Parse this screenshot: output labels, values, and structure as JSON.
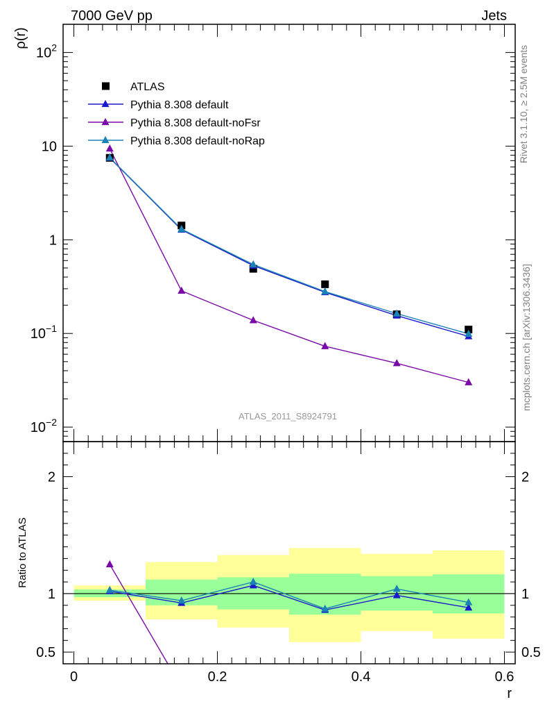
{
  "header": {
    "left": "7000 GeV pp",
    "right": "Jets"
  },
  "side_labels": {
    "rivet": "Rivet 3.1.10, ≥ 2.5M events",
    "mcplots": "mcplots.cern.ch [arXiv:1306.3436]"
  },
  "analysis_label": "ATLAS_2011_S8924791",
  "chart_data": [
    {
      "type": "line",
      "panel": "main",
      "ylabel": "ρ(r)",
      "yscale": "log",
      "ylim": [
        0.007,
        200
      ],
      "xlim": [
        -0.015,
        0.615
      ],
      "y_tick_labels": [
        {
          "value": 0.01,
          "base": "10",
          "exp": "−2"
        },
        {
          "value": 0.1,
          "base": "10",
          "exp": "−1"
        },
        {
          "value": 1,
          "base": "1",
          "exp": ""
        },
        {
          "value": 10,
          "base": "10",
          "exp": ""
        },
        {
          "value": 100,
          "base": "10",
          "exp": "2"
        }
      ],
      "x": [
        0.05,
        0.15,
        0.25,
        0.35,
        0.45,
        0.55
      ],
      "series": [
        {
          "name": "ATLAS",
          "marker": "square",
          "color": "#000000",
          "values": [
            7.5,
            1.42,
            0.49,
            0.335,
            0.16,
            0.11
          ]
        },
        {
          "name": "Pythia 8.308 default",
          "marker": "triangle",
          "color": "#1a1acc",
          "values": [
            7.5,
            1.28,
            0.53,
            0.275,
            0.155,
            0.093
          ]
        },
        {
          "name": "Pythia 8.308 default-noFsr",
          "marker": "triangle",
          "color": "#7a0aa8",
          "values": [
            9.4,
            0.285,
            0.138,
            0.073,
            0.048,
            0.03
          ]
        },
        {
          "name": "Pythia 8.308 default-noRap",
          "marker": "triangle",
          "color": "#1a82b4",
          "values": [
            7.55,
            1.3,
            0.545,
            0.28,
            0.163,
            0.099
          ]
        }
      ],
      "legend_position": "top-left"
    },
    {
      "type": "line",
      "panel": "ratio",
      "ylabel": "Ratio to ATLAS",
      "xlabel": "r",
      "ylim": [
        0.4,
        2.3
      ],
      "xlim": [
        -0.015,
        0.615
      ],
      "y_tick_labels": [
        "0.5",
        "1",
        "2"
      ],
      "y_tick_values": [
        0.5,
        1,
        2
      ],
      "x_tick_labels": [
        "0",
        "0.2",
        "0.4",
        "0.6"
      ],
      "x_tick_values": [
        0,
        0.2,
        0.4,
        0.6
      ],
      "x": [
        0.05,
        0.15,
        0.25,
        0.35,
        0.45,
        0.55
      ],
      "bin_edges": [
        0,
        0.1,
        0.2,
        0.3,
        0.4,
        0.5,
        0.6
      ],
      "band_inner": {
        "color": "#99ff99",
        "low": [
          0.97,
          0.9,
          0.865,
          0.82,
          0.855,
          0.83
        ],
        "high": [
          1.035,
          1.12,
          1.14,
          1.17,
          1.15,
          1.165
        ]
      },
      "band_outer": {
        "color": "#ffff99",
        "low": [
          0.94,
          0.78,
          0.71,
          0.585,
          0.68,
          0.615
        ],
        "high": [
          1.07,
          1.27,
          1.33,
          1.39,
          1.34,
          1.37
        ]
      },
      "series": [
        {
          "name": "Pythia 8.308 default",
          "color": "#1a1acc",
          "values": [
            1.02,
            0.92,
            1.07,
            0.86,
            0.985,
            0.88
          ]
        },
        {
          "name": "Pythia 8.308 default-noFsr",
          "color": "#7a0aa8",
          "values": [
            1.25,
            0.2,
            null,
            null,
            null,
            null
          ]
        },
        {
          "name": "Pythia 8.308 default-noRap",
          "color": "#1a82b4",
          "values": [
            1.03,
            0.94,
            1.1,
            0.87,
            1.04,
            0.925
          ]
        }
      ]
    }
  ]
}
